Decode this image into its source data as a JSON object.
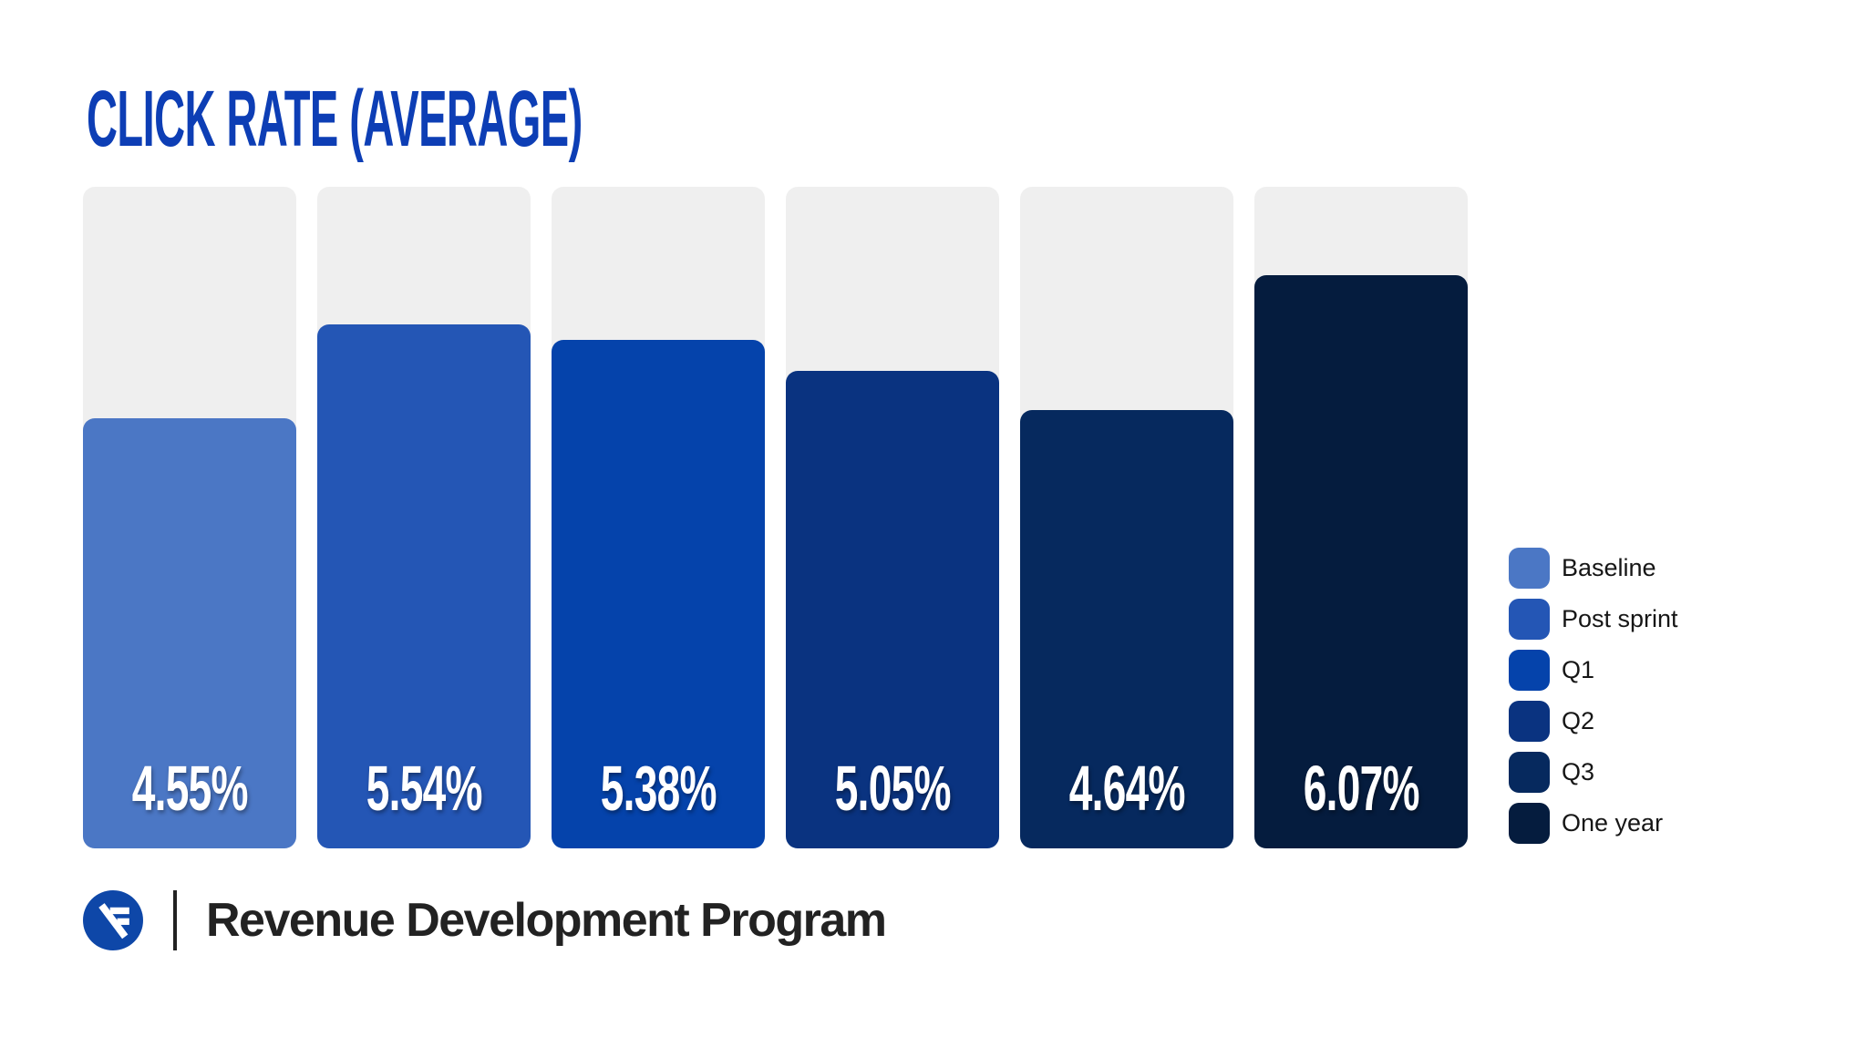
{
  "page": {
    "background_color": "#FFFFFF"
  },
  "chart_data": {
    "type": "bar",
    "title": "CLICK RATE (AVERAGE)",
    "categories": [
      "Baseline",
      "Post sprint",
      "Q1",
      "Q2",
      "Q3",
      "One year"
    ],
    "values": [
      4.55,
      5.54,
      5.38,
      5.05,
      4.64,
      6.07
    ],
    "value_labels": [
      "4.55%",
      "5.54%",
      "5.38%",
      "5.05%",
      "4.64%",
      "6.07%"
    ],
    "colors": [
      "#4B77C5",
      "#2456B5",
      "#0543AB",
      "#0A3380",
      "#06295E",
      "#051C3E"
    ],
    "track_color": "#EFEFEF",
    "xlabel": "",
    "ylabel": "",
    "ylim": [
      0,
      7.0
    ],
    "grid": false,
    "legend_position": "right",
    "value_label_position": "inside-bottom"
  },
  "legend": {
    "items": [
      {
        "label": "Baseline",
        "color": "#4B77C5"
      },
      {
        "label": "Post sprint",
        "color": "#2456B5"
      },
      {
        "label": "Q1",
        "color": "#0543AB"
      },
      {
        "label": "Q2",
        "color": "#0A3380"
      },
      {
        "label": "Q3",
        "color": "#06295E"
      },
      {
        "label": "One year",
        "color": "#051C3E"
      }
    ]
  },
  "footer": {
    "logo_icon": "n-stripes-logo-icon",
    "logo_color": "#0E47A8",
    "program_name": "Revenue Development Program"
  },
  "colors": {
    "title": "#0D3EB5",
    "track": "#EFEFEF",
    "bar_label_text": "#FFFFFF",
    "legend_text": "#161616",
    "footer_text": "#222222"
  }
}
